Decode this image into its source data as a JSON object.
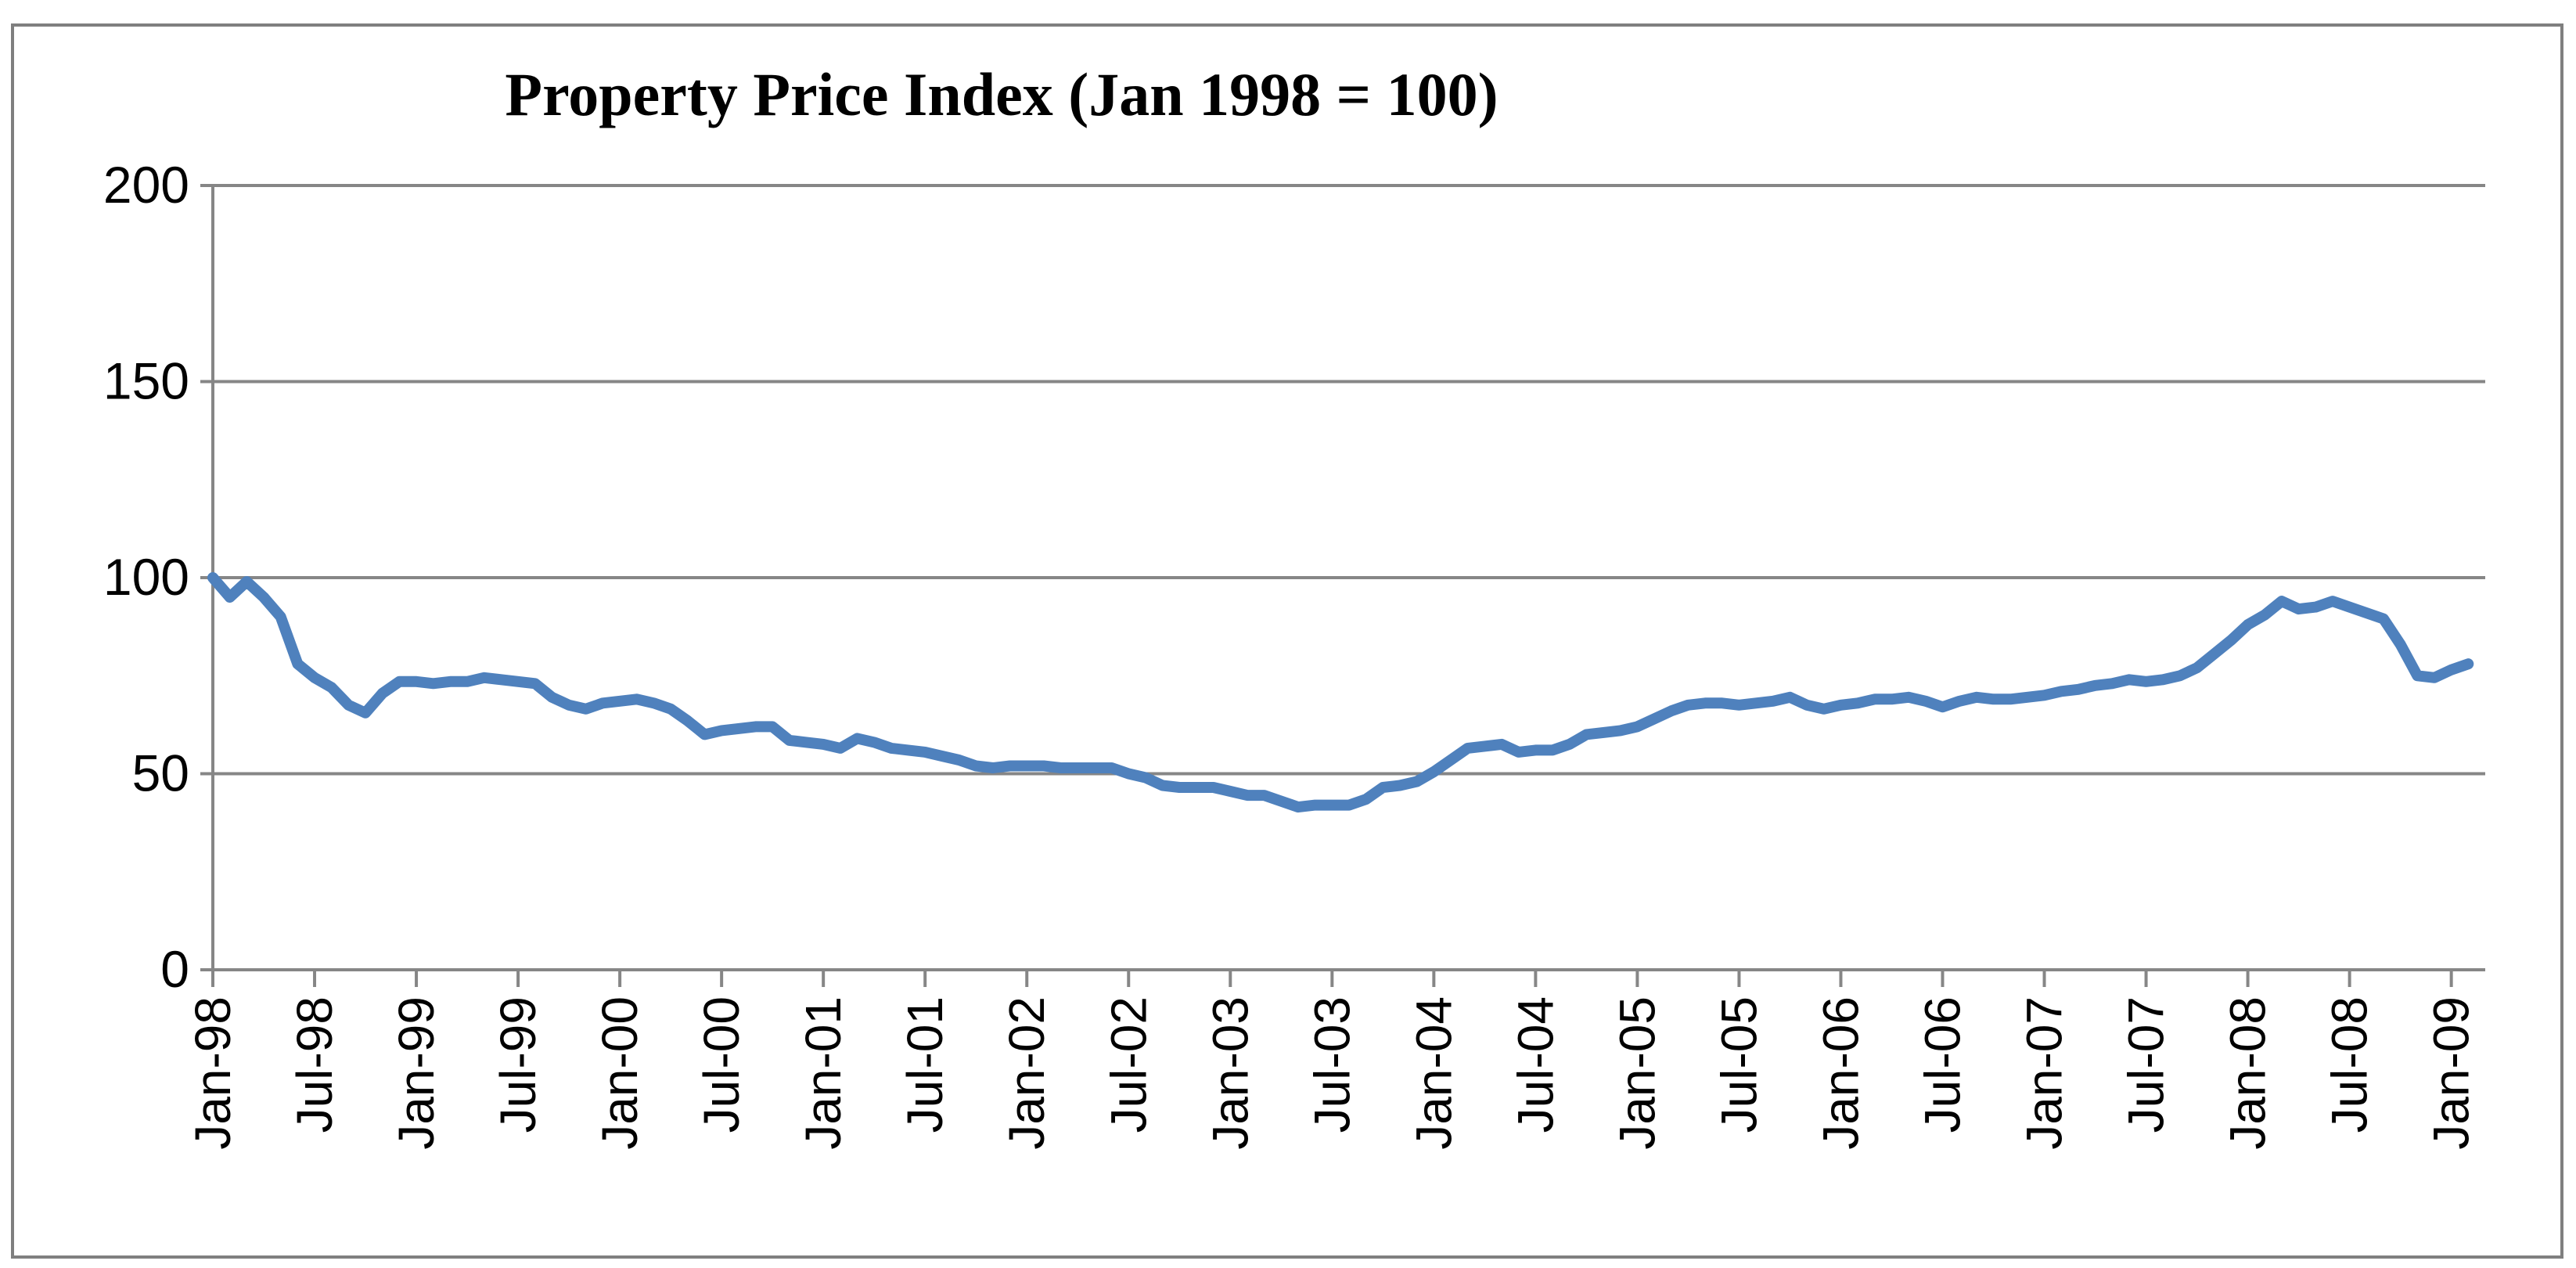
{
  "chart_data": {
    "type": "line",
    "title": "Property Price Index (Jan 1998 = 100)",
    "xlabel": "",
    "ylabel": "",
    "ylim": [
      0,
      200
    ],
    "y_ticks": [
      "0",
      "50",
      "100",
      "150",
      "200"
    ],
    "y_tick_values": [
      0,
      50,
      100,
      150,
      200
    ],
    "x_tick_labels": [
      "Jan-98",
      "Jul-98",
      "Jan-99",
      "Jul-99",
      "Jan-00",
      "Jul-00",
      "Jan-01",
      "Jul-01",
      "Jan-02",
      "Jul-02",
      "Jan-03",
      "Jul-03",
      "Jan-04",
      "Jul-04",
      "Jan-05",
      "Jul-05",
      "Jan-06",
      "Jul-06",
      "Jan-07",
      "Jul-07",
      "Jan-08",
      "Jul-08",
      "Jan-09"
    ],
    "grid": true,
    "legend": "none",
    "colors": {
      "line": "#4f81bd",
      "grid": "#868686",
      "axis": "#868686",
      "frame": "#7f7f7f"
    },
    "series": [
      {
        "name": "Property Price Index",
        "start": "Jan-98",
        "frequency": "monthly",
        "values": [
          100,
          95,
          99,
          95,
          90,
          78,
          74.5,
          72,
          67.5,
          65.5,
          70.5,
          73.5,
          73.5,
          73,
          73.5,
          73.5,
          74.5,
          74,
          73.5,
          73,
          69.5,
          67.5,
          66.5,
          68,
          68.5,
          69,
          68,
          66.5,
          63.5,
          60,
          61,
          61.5,
          62,
          62,
          58.5,
          58,
          57.5,
          56.5,
          59,
          58,
          56.5,
          56,
          55.5,
          54.5,
          53.5,
          52,
          51.5,
          52,
          52,
          52,
          51.5,
          51.5,
          51.5,
          51.5,
          50,
          49,
          47,
          46.5,
          46.5,
          46.5,
          45.5,
          44.5,
          44.5,
          43,
          41.5,
          42,
          42,
          42,
          43.5,
          46.5,
          47,
          48,
          50.5,
          53.5,
          56.5,
          57,
          57.5,
          55.5,
          56,
          56,
          57.5,
          60,
          60.5,
          61,
          62,
          64,
          66,
          67.5,
          68,
          68,
          67.5,
          68,
          68.5,
          69.5,
          67.5,
          66.5,
          67.5,
          68,
          69,
          69,
          69.5,
          68.5,
          67,
          68.5,
          69.5,
          69,
          69,
          69.5,
          70,
          71,
          71.5,
          72.5,
          73,
          74,
          73.5,
          74,
          75,
          77,
          80.5,
          84,
          88,
          90.5,
          94,
          92,
          92.5,
          94,
          92.5,
          91,
          89.5,
          83,
          75,
          74.5,
          76.5,
          78
        ]
      }
    ]
  }
}
